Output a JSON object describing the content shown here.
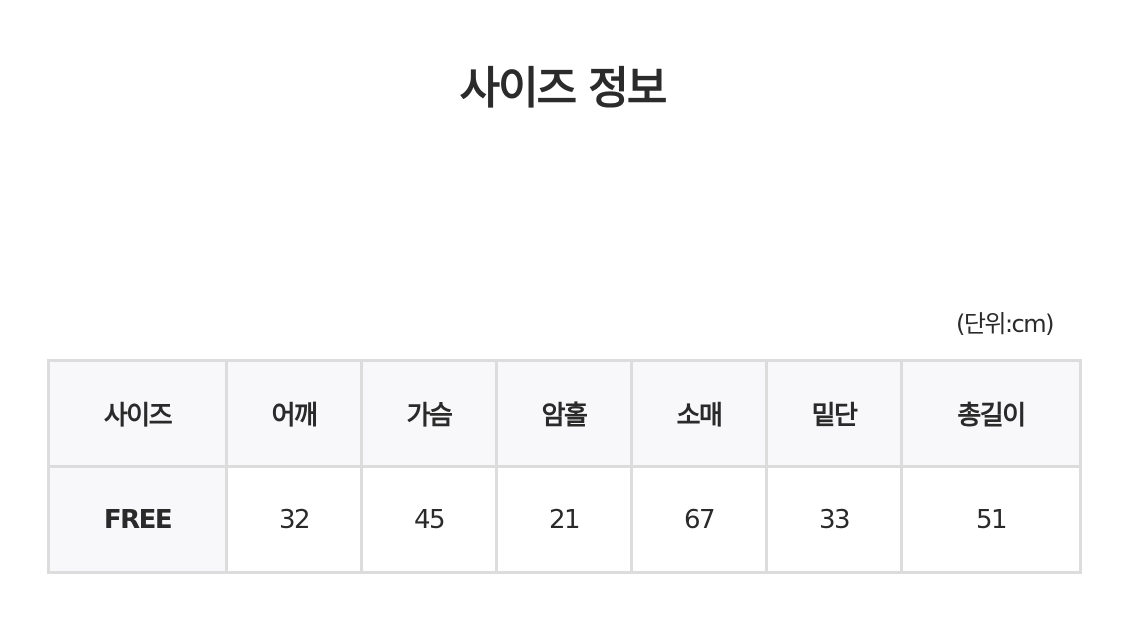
{
  "title": "사이즈 정보",
  "unit": "(단위:cm)",
  "table": {
    "headers": [
      "사이즈",
      "어깨",
      "가슴",
      "암홀",
      "소매",
      "밑단",
      "총길이"
    ],
    "rows": [
      [
        "FREE",
        "32",
        "45",
        "21",
        "67",
        "33",
        "51"
      ]
    ]
  }
}
